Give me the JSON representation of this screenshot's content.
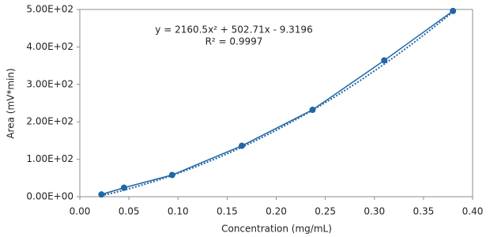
{
  "chart_data": {
    "type": "scatter",
    "x_label": "Concentration (mg/mL)",
    "y_label": "Area (mV*min)",
    "x": [
      0.022,
      0.045,
      0.094,
      0.165,
      0.237,
      0.31,
      0.38
    ],
    "series": [
      {
        "color": "#2166a5",
        "values": [
          6,
          24,
          58,
          136,
          232,
          364,
          496
        ]
      }
    ],
    "trendline": {
      "type": "polynomial",
      "coefficients": [
        2160.5,
        502.71,
        -9.3196
      ],
      "style": "dotted",
      "equation": "y = 2160.5x² + 502.71x - 9.3196",
      "r_squared": "R² = 0.9997"
    },
    "xlim": [
      0,
      0.4
    ],
    "ylim": [
      0,
      500
    ],
    "xticks": [
      {
        "value": 0,
        "label": "0.00"
      },
      {
        "value": 0.05,
        "label": "0.05"
      },
      {
        "value": 0.1,
        "label": "0.10"
      },
      {
        "value": 0.15,
        "label": "0.15"
      },
      {
        "value": 0.2,
        "label": "0.20"
      },
      {
        "value": 0.25,
        "label": "0.25"
      },
      {
        "value": 0.3,
        "label": "0.30"
      },
      {
        "value": 0.35,
        "label": "0.35"
      },
      {
        "value": 0.4,
        "label": "0.40"
      }
    ],
    "yticks": [
      {
        "value": 0,
        "label": "0.00E+00"
      },
      {
        "value": 100,
        "label": "1.00E+02"
      },
      {
        "value": 200,
        "label": "2.00E+02"
      },
      {
        "value": 300,
        "label": "3.00E+02"
      },
      {
        "value": 400,
        "label": "4.00E+02"
      },
      {
        "value": 500,
        "label": "5.00E+02"
      }
    ]
  }
}
